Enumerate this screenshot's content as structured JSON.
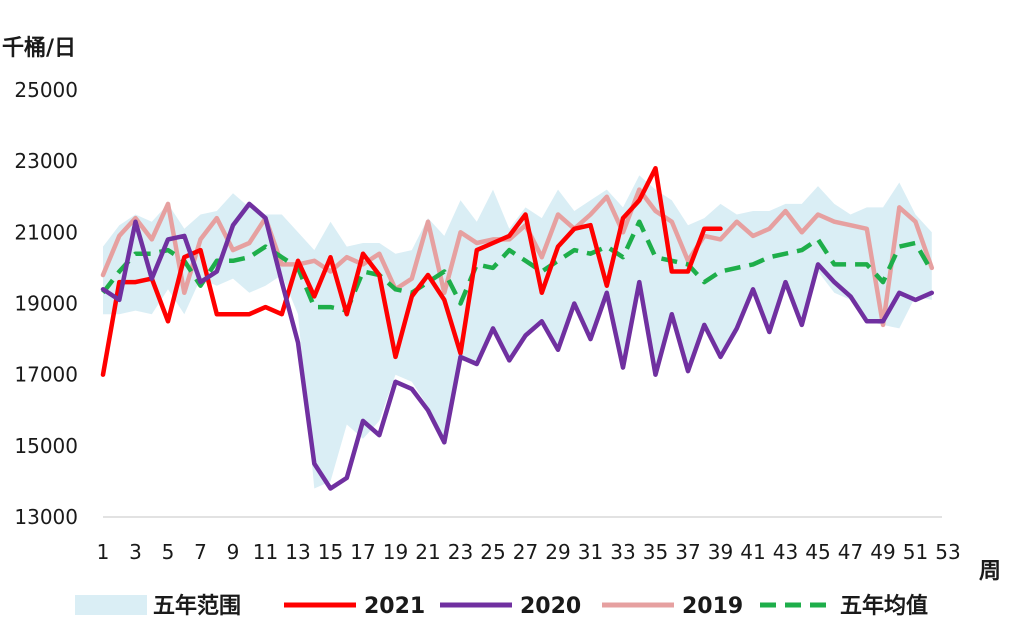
{
  "chart_data": {
    "type": "line",
    "y_unit_label": "千桶/日",
    "x_unit_label": "周",
    "ylim": [
      13000,
      25000
    ],
    "yticks": [
      "25000",
      "23000",
      "21000",
      "19000",
      "17000",
      "15000",
      "13000"
    ],
    "xlim": [
      1,
      53
    ],
    "xticks": [
      "1",
      "3",
      "5",
      "7",
      "9",
      "11",
      "13",
      "15",
      "17",
      "19",
      "21",
      "23",
      "25",
      "27",
      "29",
      "31",
      "33",
      "35",
      "37",
      "39",
      "41",
      "43",
      "45",
      "47",
      "49",
      "51",
      "53"
    ],
    "legend_position": "bottom",
    "grid": false,
    "range_band": {
      "name": "五年范围",
      "color": "#daeef5",
      "upper": [
        20600,
        21200,
        21500,
        21300,
        21800,
        21100,
        21500,
        21600,
        22100,
        21700,
        21500,
        21500,
        21000,
        20500,
        21300,
        20600,
        20700,
        20700,
        20400,
        20500,
        21400,
        20900,
        21900,
        21300,
        22200,
        21100,
        21700,
        21400,
        22200,
        21600,
        21900,
        22200,
        21700,
        22600,
        22200,
        21900,
        21200,
        21400,
        21800,
        21500,
        21600,
        21600,
        21800,
        21800,
        22300,
        21800,
        21500,
        21700,
        21700,
        22400,
        21500,
        21000
      ],
      "lower": [
        18700,
        18700,
        18800,
        18700,
        19400,
        18700,
        19700,
        19500,
        19700,
        19300,
        19500,
        19800,
        18700,
        13800,
        14000,
        15600,
        15200,
        15700,
        17000,
        16800,
        16100,
        15000,
        17400,
        17300,
        18200,
        17500,
        18000,
        18500,
        17800,
        18900,
        18100,
        19200,
        17500,
        19300,
        17000,
        18600,
        17100,
        18300,
        17400,
        18400,
        19300,
        18200,
        19500,
        18400,
        19900,
        19300,
        19100,
        18500,
        18400,
        18300,
        19200,
        19100
      ]
    },
    "series": [
      {
        "name": "2021",
        "color": "#ff0000",
        "dash": false,
        "values": [
          17000,
          19600,
          19600,
          19700,
          18500,
          20300,
          20500,
          18700,
          18700,
          18700,
          18900,
          18700,
          20200,
          19200,
          20300,
          18700,
          20400,
          19800,
          17500,
          19200,
          19800,
          19100,
          17600,
          20500,
          20700,
          20900,
          21500,
          19300,
          20600,
          21100,
          21200,
          19500,
          21400,
          21900,
          22800,
          19900,
          19900,
          21100,
          21100
        ]
      },
      {
        "name": "2020",
        "color": "#7030a0",
        "dash": false,
        "values": [
          19400,
          19100,
          21300,
          19700,
          20800,
          20900,
          19600,
          19900,
          21200,
          21800,
          21400,
          19600,
          17900,
          14500,
          13800,
          14100,
          15700,
          15300,
          16800,
          16600,
          16000,
          15100,
          17500,
          17300,
          18300,
          17400,
          18100,
          18500,
          17700,
          19000,
          18000,
          19300,
          17200,
          19600,
          17000,
          18700,
          17100,
          18400,
          17500,
          18300,
          19400,
          18200,
          19600,
          18400,
          20100,
          19600,
          19200,
          18500,
          18500,
          19300,
          19100,
          19300
        ]
      },
      {
        "name": "2019",
        "color": "#e6a0a0",
        "dash": false,
        "values": [
          19800,
          20900,
          21400,
          20800,
          21800,
          19300,
          20800,
          21400,
          20500,
          20700,
          21400,
          20100,
          20100,
          20200,
          19900,
          20300,
          20100,
          20400,
          19400,
          19700,
          21300,
          19300,
          21000,
          20700,
          20800,
          20800,
          21200,
          20300,
          21500,
          21100,
          21500,
          22000,
          21000,
          22200,
          21600,
          21300,
          20200,
          20900,
          20800,
          21300,
          20900,
          21100,
          21600,
          21000,
          21500,
          21300,
          21200,
          21100,
          18400,
          21700,
          21300,
          20000
        ]
      },
      {
        "name": "五年均值",
        "color": "#1eae4a",
        "dash": true,
        "values": [
          19300,
          19900,
          20400,
          20400,
          20500,
          20200,
          19500,
          20200,
          20200,
          20300,
          20600,
          20300,
          20000,
          18900,
          18900,
          18800,
          19900,
          19800,
          19400,
          19300,
          19600,
          19900,
          19000,
          20100,
          20000,
          20500,
          20200,
          19900,
          20200,
          20500,
          20400,
          20600,
          20300,
          21300,
          20300,
          20200,
          20100,
          19600,
          19900,
          20000,
          20100,
          20300,
          20400,
          20500,
          20800,
          20100,
          20100,
          20100,
          19600,
          20600,
          20700,
          19900
        ]
      }
    ]
  }
}
